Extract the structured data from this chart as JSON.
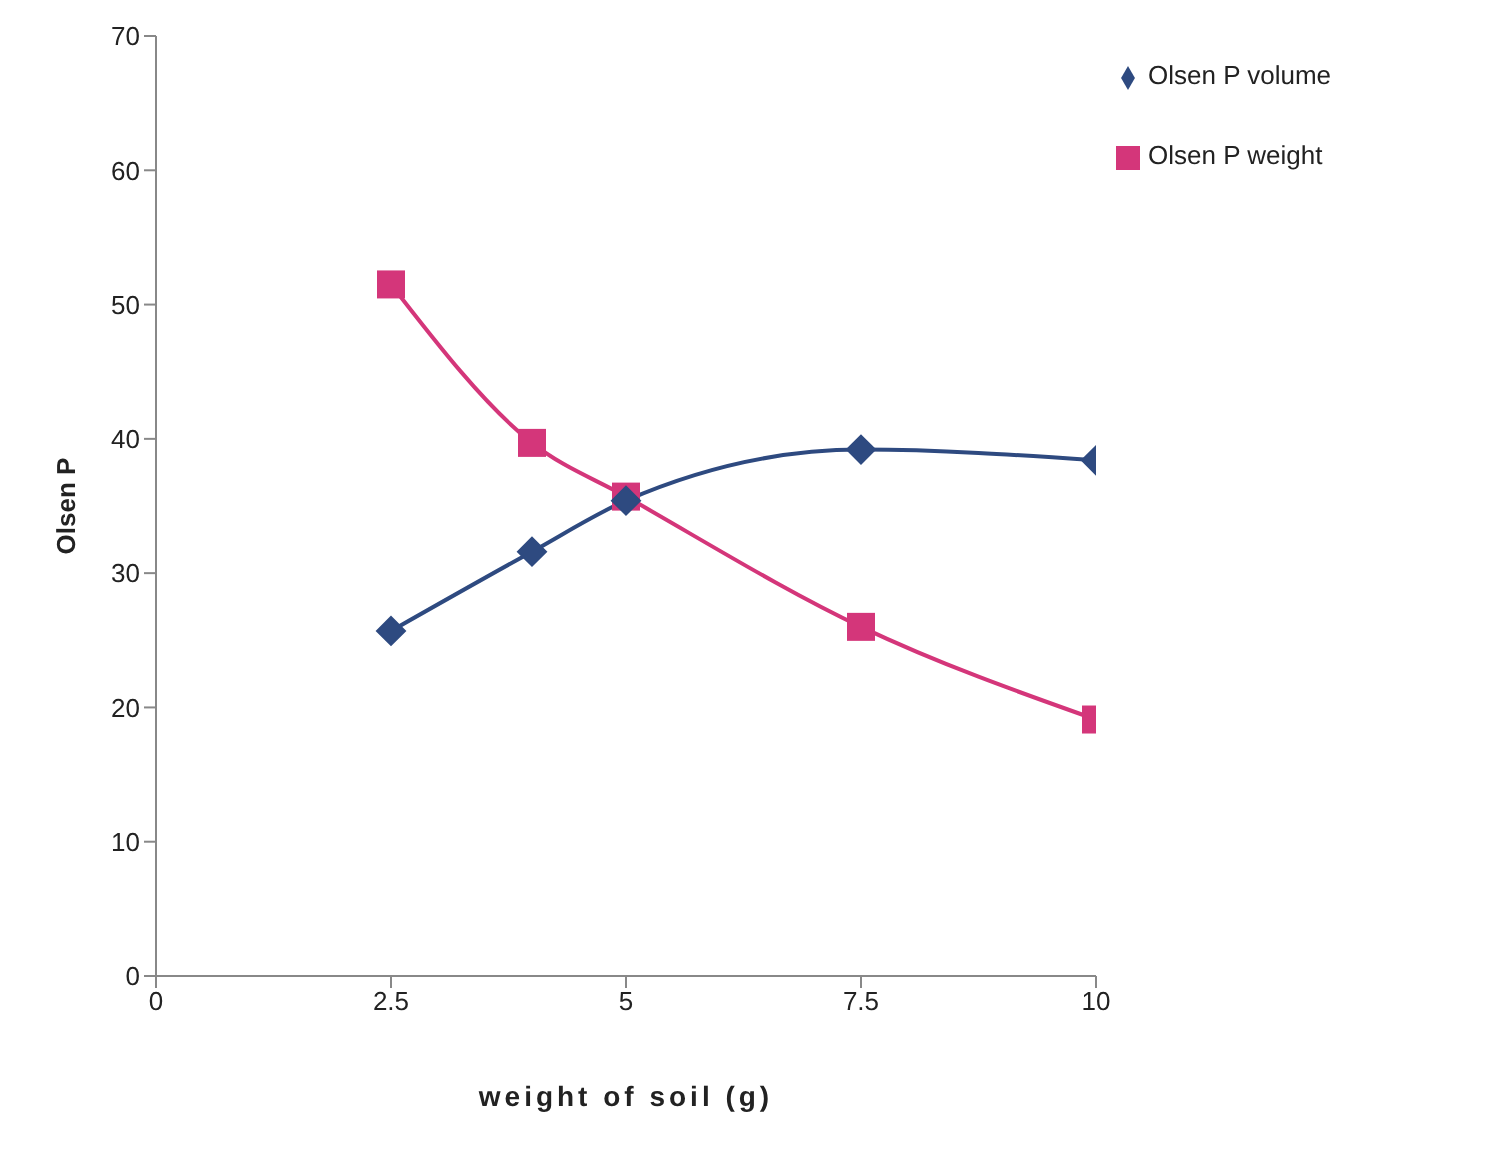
{
  "chart_data": {
    "type": "line",
    "xlabel": "weight of soil (g)",
    "ylabel": "Olsen P",
    "x": [
      2.5,
      4,
      5,
      7.5,
      10
    ],
    "series": [
      {
        "name": "Olsen P volume",
        "color": "#2e4a80",
        "marker": "diamond",
        "values": [
          25.7,
          31.6,
          35.4,
          39.2,
          38.4
        ]
      },
      {
        "name": "Olsen P weight",
        "color": "#d4367a",
        "marker": "square",
        "values": [
          51.5,
          39.7,
          35.7,
          26.0,
          19.1
        ]
      }
    ],
    "xlim": [
      0,
      10
    ],
    "xticks": [
      0,
      2.5,
      5,
      7.5,
      10
    ],
    "ylim": [
      0,
      70
    ],
    "yticks": [
      0,
      10,
      20,
      30,
      40,
      50,
      60,
      70
    ],
    "grid": false,
    "legend": "top right",
    "line_style": "solid"
  }
}
